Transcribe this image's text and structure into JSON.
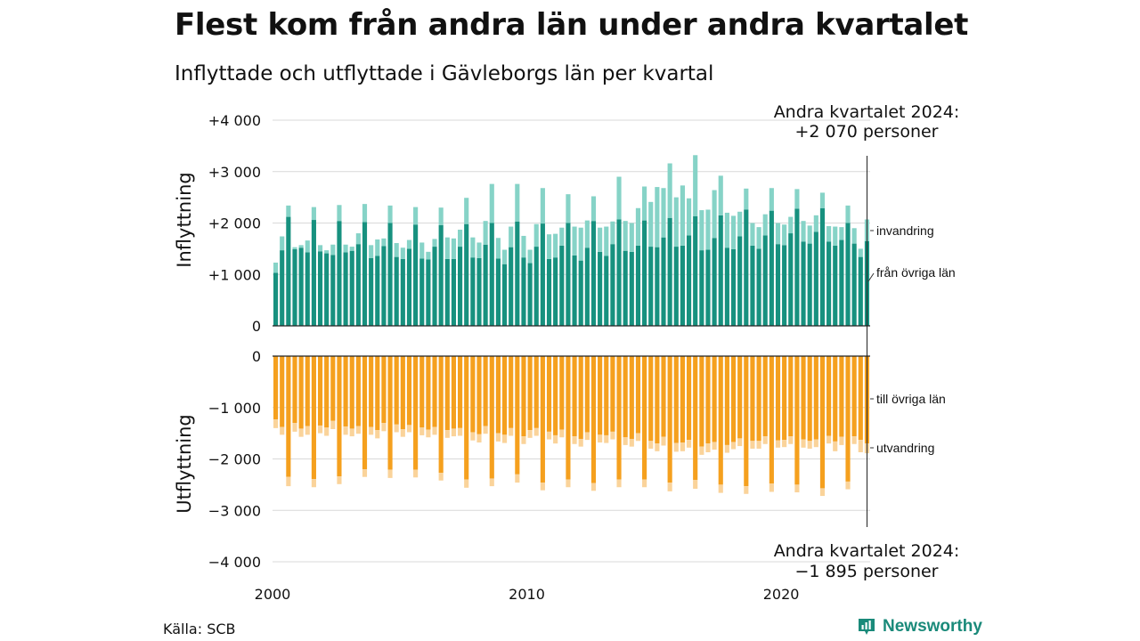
{
  "title": "Flest kom från andra län under andra kvartalet",
  "subtitle": "Inflyttade och utflyttade i Gävleborgs län per kvartal",
  "source": "Källa: SCB",
  "logo_text": "Newsworthy",
  "colors": {
    "from_other_counties": "#17917f",
    "immigration": "#86d3c7",
    "to_other_counties": "#f5a01e",
    "emigration": "#fad39a",
    "grid": "#d9d9d9",
    "logo": "#1a8a7a"
  },
  "chart_data": {
    "type": "bar",
    "stacked": true,
    "grid": true,
    "x_ticks": [
      "2000",
      "2010",
      "2020"
    ],
    "top_panel": {
      "ylabel": "Inflyttning",
      "ylim": [
        0,
        4000
      ],
      "y_ticks": [
        {
          "value": 0,
          "label": "0"
        },
        {
          "value": 1000,
          "label": "+1 000"
        },
        {
          "value": 2000,
          "label": "+2 000"
        },
        {
          "value": 3000,
          "label": "+3 000"
        },
        {
          "value": 4000,
          "label": "+4 000"
        }
      ],
      "annotation": [
        "Andra kvartalet 2024:",
        "+2 070 personer"
      ],
      "series": [
        {
          "name": "från övriga län",
          "values": [
            1030,
            1470,
            2120,
            1490,
            1520,
            1430,
            2060,
            1450,
            1410,
            1380,
            2040,
            1430,
            1460,
            1590,
            2020,
            1320,
            1360,
            1550,
            2000,
            1340,
            1300,
            1500,
            1970,
            1310,
            1290,
            1540,
            1960,
            1300,
            1300,
            1540,
            1980,
            1330,
            1320,
            1580,
            2000,
            1310,
            1200,
            1530,
            2030,
            1330,
            1220,
            1540,
            1990,
            1300,
            1330,
            1560,
            2000,
            1370,
            1270,
            1520,
            2040,
            1440,
            1360,
            1590,
            2070,
            1460,
            1440,
            1560,
            2050,
            1540,
            1530,
            1720,
            2100,
            1540,
            1560,
            1760,
            2130,
            1470,
            1480,
            1710,
            2150,
            1520,
            1490,
            1740,
            2260,
            1560,
            1500,
            1760,
            2240,
            1590,
            1570,
            1800,
            2280,
            1640,
            1600,
            1830,
            2290,
            1640,
            1560,
            1670,
            2000,
            1600,
            1340,
            1650
          ],
          "color": "#17917f"
        },
        {
          "name": "invandring",
          "values": [
            200,
            270,
            220,
            40,
            50,
            230,
            250,
            120,
            60,
            200,
            310,
            150,
            80,
            210,
            350,
            250,
            320,
            150,
            340,
            270,
            220,
            170,
            340,
            310,
            150,
            150,
            340,
            420,
            400,
            330,
            510,
            390,
            300,
            460,
            760,
            400,
            280,
            400,
            730,
            420,
            260,
            440,
            690,
            480,
            460,
            350,
            560,
            560,
            640,
            530,
            480,
            470,
            570,
            440,
            830,
            580,
            560,
            730,
            660,
            870,
            1170,
            960,
            1060,
            960,
            1170,
            720,
            1190,
            780,
            780,
            930,
            770,
            680,
            650,
            480,
            410,
            440,
            420,
            410,
            440,
            410,
            400,
            320,
            380,
            400,
            350,
            320,
            300,
            300,
            370,
            250,
            340,
            300,
            160,
            420
          ],
          "color": "#86d3c7"
        }
      ]
    },
    "bottom_panel": {
      "ylabel": "Utflyttning",
      "ylim": [
        -4000,
        0
      ],
      "y_ticks": [
        {
          "value": 0,
          "label": "0"
        },
        {
          "value": -1000,
          "label": "−1 000"
        },
        {
          "value": -2000,
          "label": "−2 000"
        },
        {
          "value": -3000,
          "label": "−3 000"
        },
        {
          "value": -4000,
          "label": "−4 000"
        }
      ],
      "annotation": [
        "Andra kvartalet 2024:",
        "−1 895 personer"
      ],
      "series": [
        {
          "name": "till övriga län",
          "values": [
            -1230,
            -1380,
            -2350,
            -1300,
            -1410,
            -1360,
            -2390,
            -1350,
            -1390,
            -1260,
            -2340,
            -1370,
            -1410,
            -1360,
            -2200,
            -1380,
            -1440,
            -1300,
            -2210,
            -1330,
            -1420,
            -1340,
            -2210,
            -1390,
            -1430,
            -1380,
            -2270,
            -1440,
            -1410,
            -1400,
            -2400,
            -1480,
            -1520,
            -1360,
            -2380,
            -1500,
            -1530,
            -1400,
            -2300,
            -1560,
            -1440,
            -1400,
            -2460,
            -1470,
            -1540,
            -1430,
            -2400,
            -1560,
            -1610,
            -1480,
            -2470,
            -1530,
            -1540,
            -1470,
            -2400,
            -1580,
            -1610,
            -1500,
            -2400,
            -1650,
            -1700,
            -1570,
            -2460,
            -1690,
            -1680,
            -1630,
            -2410,
            -1760,
            -1700,
            -1670,
            -2500,
            -1730,
            -1670,
            -1600,
            -2530,
            -1650,
            -1650,
            -1560,
            -2480,
            -1640,
            -1630,
            -1560,
            -2500,
            -1620,
            -1650,
            -1620,
            -2570,
            -1550,
            -1660,
            -1570,
            -2440,
            -1560,
            -1630,
            -1700
          ],
          "color": "#f5a01e"
        },
        {
          "name": "utvandring",
          "values": [
            -170,
            -150,
            -180,
            -170,
            -160,
            -170,
            -160,
            -150,
            -160,
            -160,
            -150,
            -160,
            -150,
            -150,
            -150,
            -150,
            -160,
            -160,
            -160,
            -150,
            -150,
            -140,
            -150,
            -150,
            -150,
            -150,
            -150,
            -150,
            -150,
            -150,
            -160,
            -160,
            -160,
            -150,
            -150,
            -160,
            -160,
            -150,
            -160,
            -150,
            -150,
            -150,
            -150,
            -150,
            -160,
            -150,
            -150,
            -150,
            -150,
            -150,
            -150,
            -150,
            -150,
            -150,
            -150,
            -150,
            -150,
            -150,
            -150,
            -150,
            -150,
            -170,
            -170,
            -170,
            -170,
            -150,
            -170,
            -160,
            -170,
            -150,
            -160,
            -150,
            -140,
            -150,
            -150,
            -150,
            -150,
            -150,
            -160,
            -140,
            -140,
            -150,
            -150,
            -160,
            -150,
            -150,
            -150,
            -150,
            -190,
            -160,
            -150,
            -150,
            -240,
            -190
          ],
          "color": "#fad39a"
        }
      ]
    }
  }
}
